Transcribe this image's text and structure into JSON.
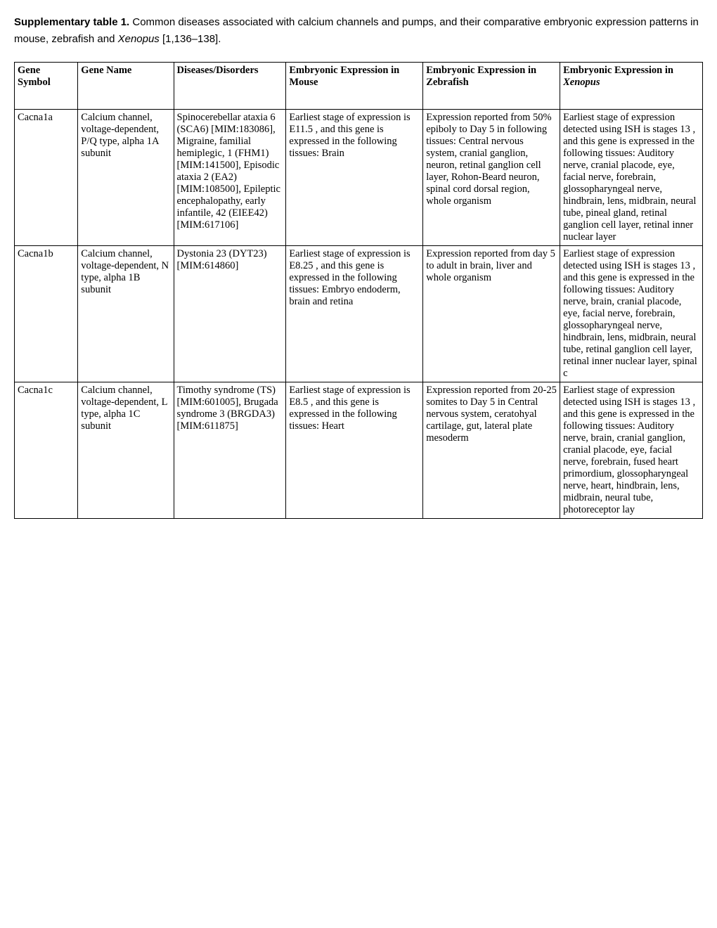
{
  "caption": {
    "label": "Supplementary table 1.",
    "text_part1": " Common diseases associated with calcium channels and pumps, and their comparative embryonic expression patterns in mouse, zebrafish and ",
    "italic_species": "Xenopus",
    "text_part2": " [1,136–138]."
  },
  "headers": {
    "col1": "Gene Symbol",
    "col2": "Gene Name",
    "col3": "Diseases/Disorders",
    "col4": "Embryonic Expression in Mouse",
    "col5": "Embryonic Expression in Zebrafish",
    "col6_prefix": "Embryonic Expression in ",
    "col6_italic": "Xenopus"
  },
  "rows": [
    {
      "symbol": "Cacna1a",
      "name": "Calcium channel, voltage-dependent, P/Q type, alpha 1A subunit",
      "diseases": "Spinocerebellar ataxia 6 (SCA6) [MIM:183086], Migraine, familial hemiplegic, 1 (FHM1) [MIM:141500], Episodic ataxia 2 (EA2) [MIM:108500], Epileptic encephalopathy, early infantile, 42 (EIEE42) [MIM:617106]",
      "mouse": "Earliest stage of expression is E11.5 , and this gene is expressed in the following tissues: Brain",
      "zebrafish": "Expression reported from 50% epiboly to Day 5 in following tissues: Central nervous system, cranial ganglion, neuron, retinal ganglion cell layer, Rohon-Beard neuron,  spinal cord dorsal region,  whole organism",
      "xenopus": "Earliest stage of expression detected using ISH is stages 13 , and this gene is expressed in the following tissues: Auditory nerve, cranial placode, eye, facial nerve, forebrain, glossopharyngeal nerve, hindbrain, lens, midbrain, neural tube, pineal gland, retinal ganglion cell layer, retinal inner nuclear layer"
    },
    {
      "symbol": "Cacna1b",
      "name": "Calcium channel, voltage-dependent, N type, alpha 1B subunit",
      "diseases": "Dystonia 23 (DYT23) [MIM:614860]",
      "mouse": "Earliest stage of expression is E8.25 , and this gene is expressed in the following tissues: Embryo endoderm, brain and retina",
      "zebrafish": "Expression reported from day 5 to adult in brain, liver and whole organism",
      "xenopus": "Earliest stage of expression detected using ISH is stages 13 , and this gene is expressed in the following tissues: Auditory nerve, brain, cranial placode, eye, facial nerve, forebrain, glossopharyngeal nerve, hindbrain, lens, midbrain, neural tube, retinal ganglion cell layer, retinal inner nuclear layer, spinal c"
    },
    {
      "symbol": "Cacna1c",
      "name": "Calcium channel, voltage-dependent, L type, alpha 1C subunit",
      "diseases": "Timothy syndrome (TS) [MIM:601005], Brugada syndrome 3 (BRGDA3) [MIM:611875]",
      "mouse": "Earliest stage of expression is E8.5 , and this gene is expressed in the following tissues: Heart",
      "zebrafish": "Expression reported from 20-25 somites to Day 5 in  Central nervous system, ceratohyal cartilage,\n gut,  lateral plate mesoderm",
      "xenopus": "Earliest stage of expression detected using ISH is stages 13 , and this gene is expressed in the following tissues: Auditory nerve, brain, cranial ganglion, cranial placode, eye, facial nerve, forebrain, fused heart primordium, glossopharyngeal nerve, heart, hindbrain, lens, midbrain, neural tube, photoreceptor lay"
    }
  ]
}
